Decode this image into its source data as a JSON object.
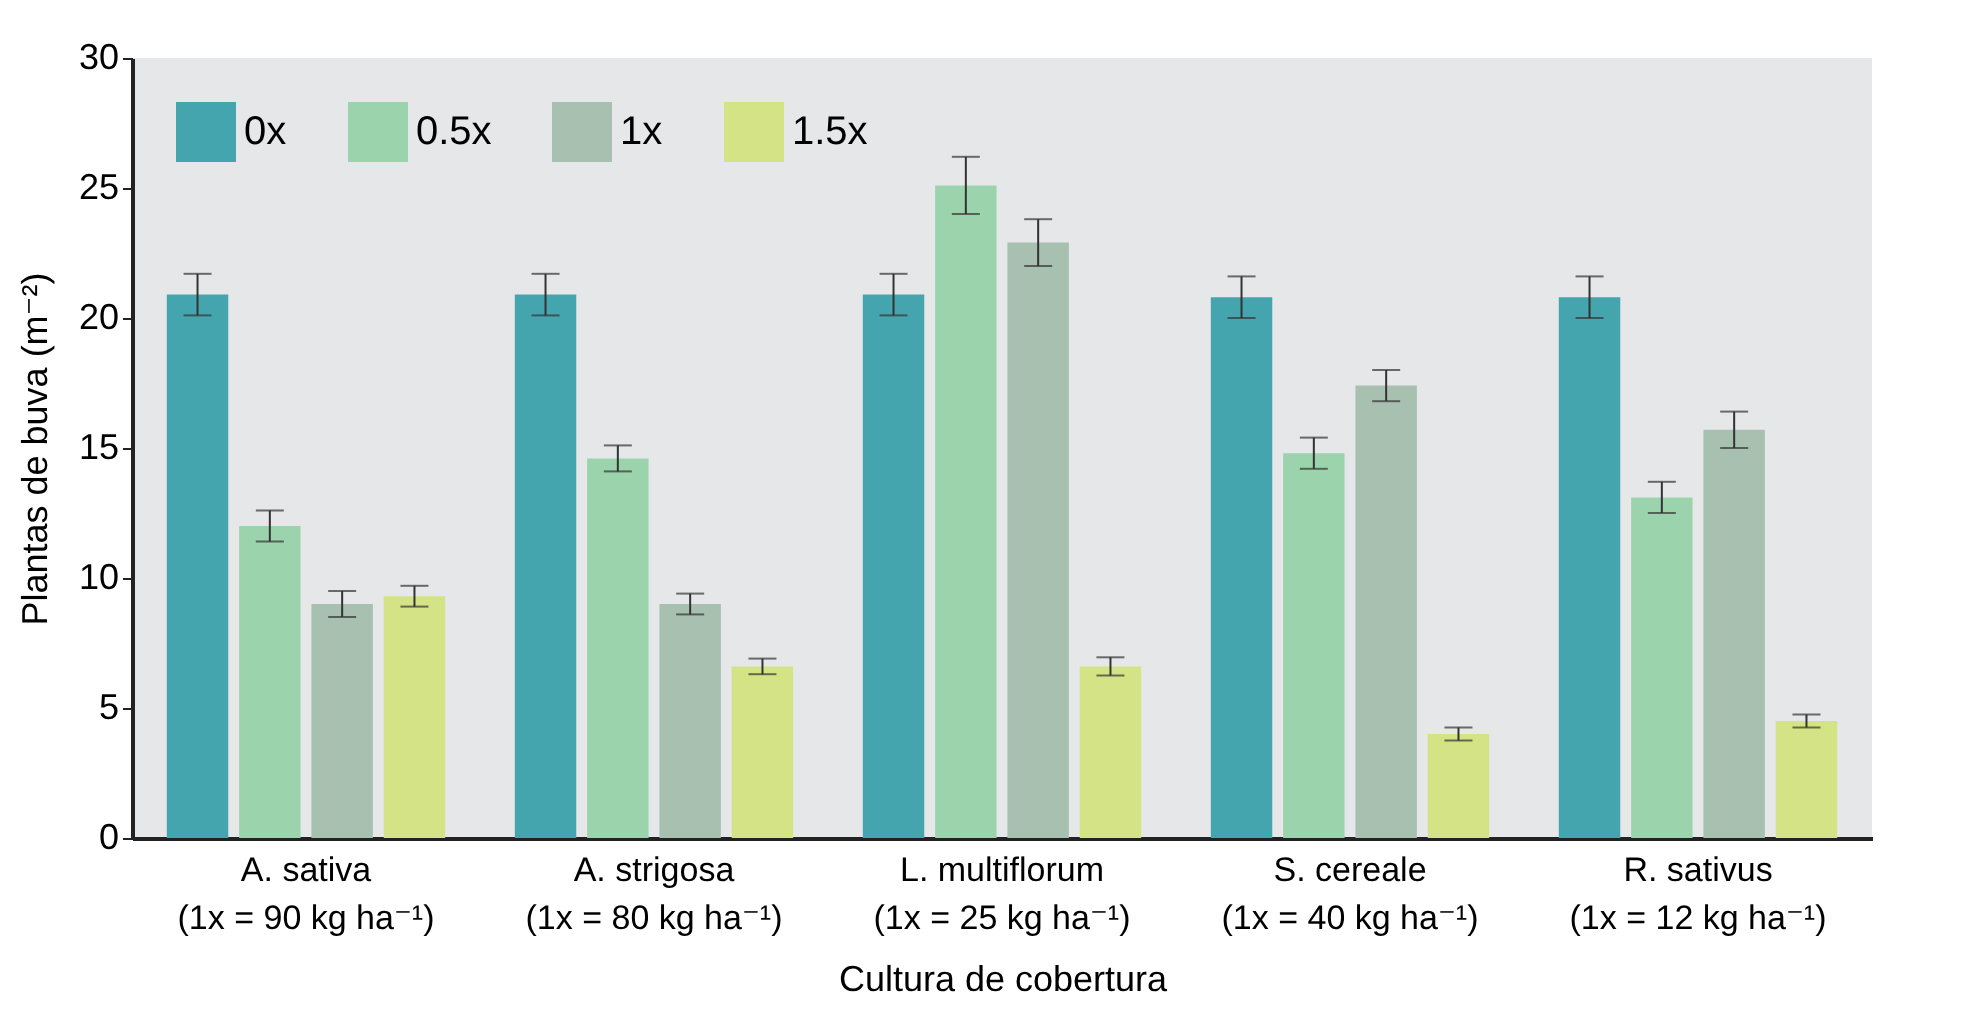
{
  "chart_data": {
    "type": "bar",
    "xlabel": "Cultura de cobertura",
    "ylabel": "Plantas de buva (m⁻²)",
    "categories": [
      "A. sativa\n(1x = 90 kg ha⁻¹)",
      "A. strigosa\n(1x = 80 kg ha⁻¹)",
      "L. multiflorum\n(1x = 25 kg ha⁻¹)",
      "S. cereale\n(1x = 40 kg ha⁻¹)",
      "R. sativus\n(1x = 12 kg ha⁻¹)"
    ],
    "series": [
      {
        "name": "0x",
        "color": "#45a5ae",
        "values": [
          20.9,
          20.9,
          20.9,
          20.8,
          20.8
        ],
        "errors": [
          0.8,
          0.8,
          0.8,
          0.8,
          0.8
        ]
      },
      {
        "name": "0.5x",
        "color": "#9bd3ad",
        "values": [
          12.0,
          14.6,
          25.1,
          14.8,
          13.1
        ],
        "errors": [
          0.6,
          0.5,
          1.1,
          0.6,
          0.6
        ]
      },
      {
        "name": "1x",
        "color": "#a8c0b0",
        "values": [
          9.0,
          9.0,
          22.9,
          17.4,
          15.7
        ],
        "errors": [
          0.5,
          0.4,
          0.9,
          0.6,
          0.7
        ]
      },
      {
        "name": "1.5x",
        "color": "#d3e386",
        "values": [
          9.3,
          6.6,
          6.6,
          4.0,
          4.5
        ],
        "errors": [
          0.4,
          0.3,
          0.35,
          0.25,
          0.25
        ]
      }
    ],
    "ylim": [
      0,
      30
    ],
    "yticks": [
      0,
      5,
      10,
      15,
      20,
      25,
      30
    ],
    "grid": false,
    "legend": "top left"
  }
}
